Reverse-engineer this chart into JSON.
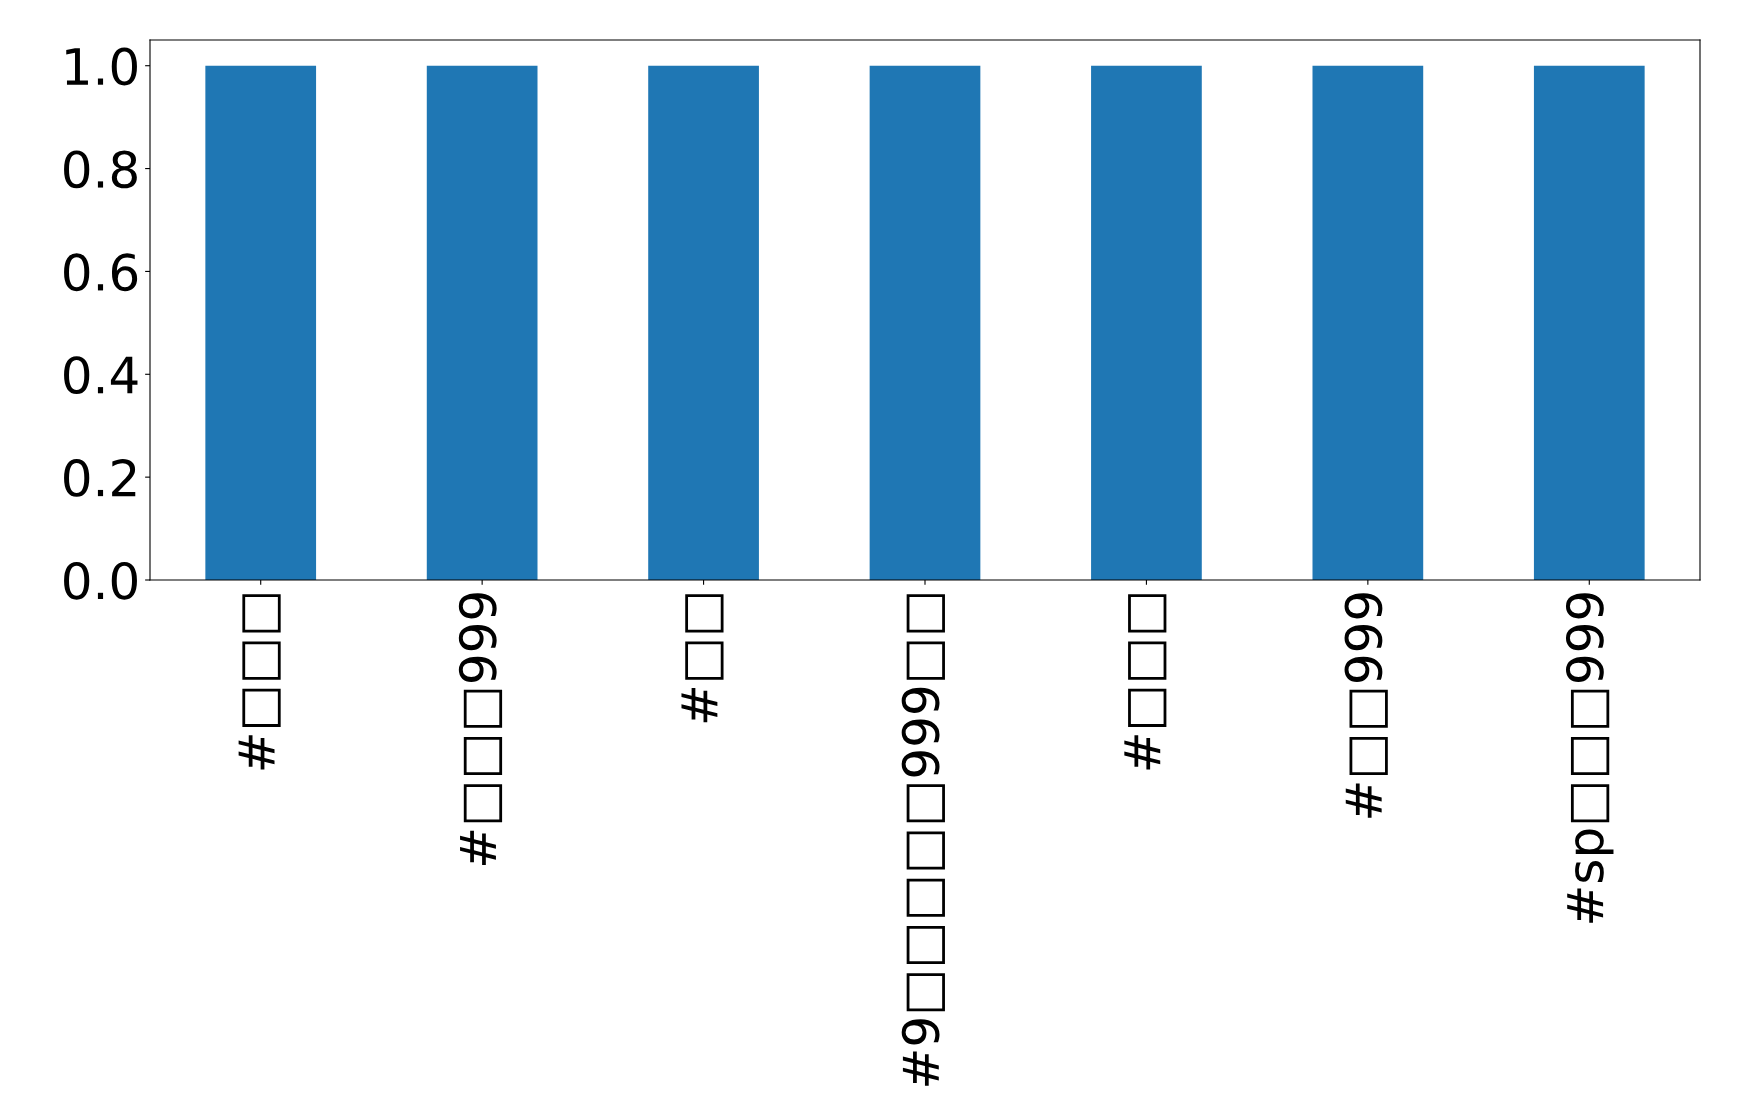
{
  "chart_data": {
    "type": "bar",
    "categories": [
      "#□□□",
      "#□□□999",
      "#□□",
      "#9□□□□□999□□",
      "#□□□",
      "#□□999",
      "#sp□□□999"
    ],
    "values": [
      1,
      1,
      1,
      1,
      1,
      1,
      1
    ],
    "color": "#1f77b4",
    "ylim": [
      0,
      1.05
    ],
    "yticks": [
      {
        "value": 0,
        "label": "0.0"
      },
      {
        "value": 0.2,
        "label": "0.2"
      },
      {
        "value": 0.4,
        "label": "0.4"
      },
      {
        "value": 0.6,
        "label": "0.6"
      },
      {
        "value": 0.8,
        "label": "0.8"
      },
      {
        "value": 1,
        "label": "1.0"
      }
    ],
    "grid": false,
    "legend": false
  }
}
